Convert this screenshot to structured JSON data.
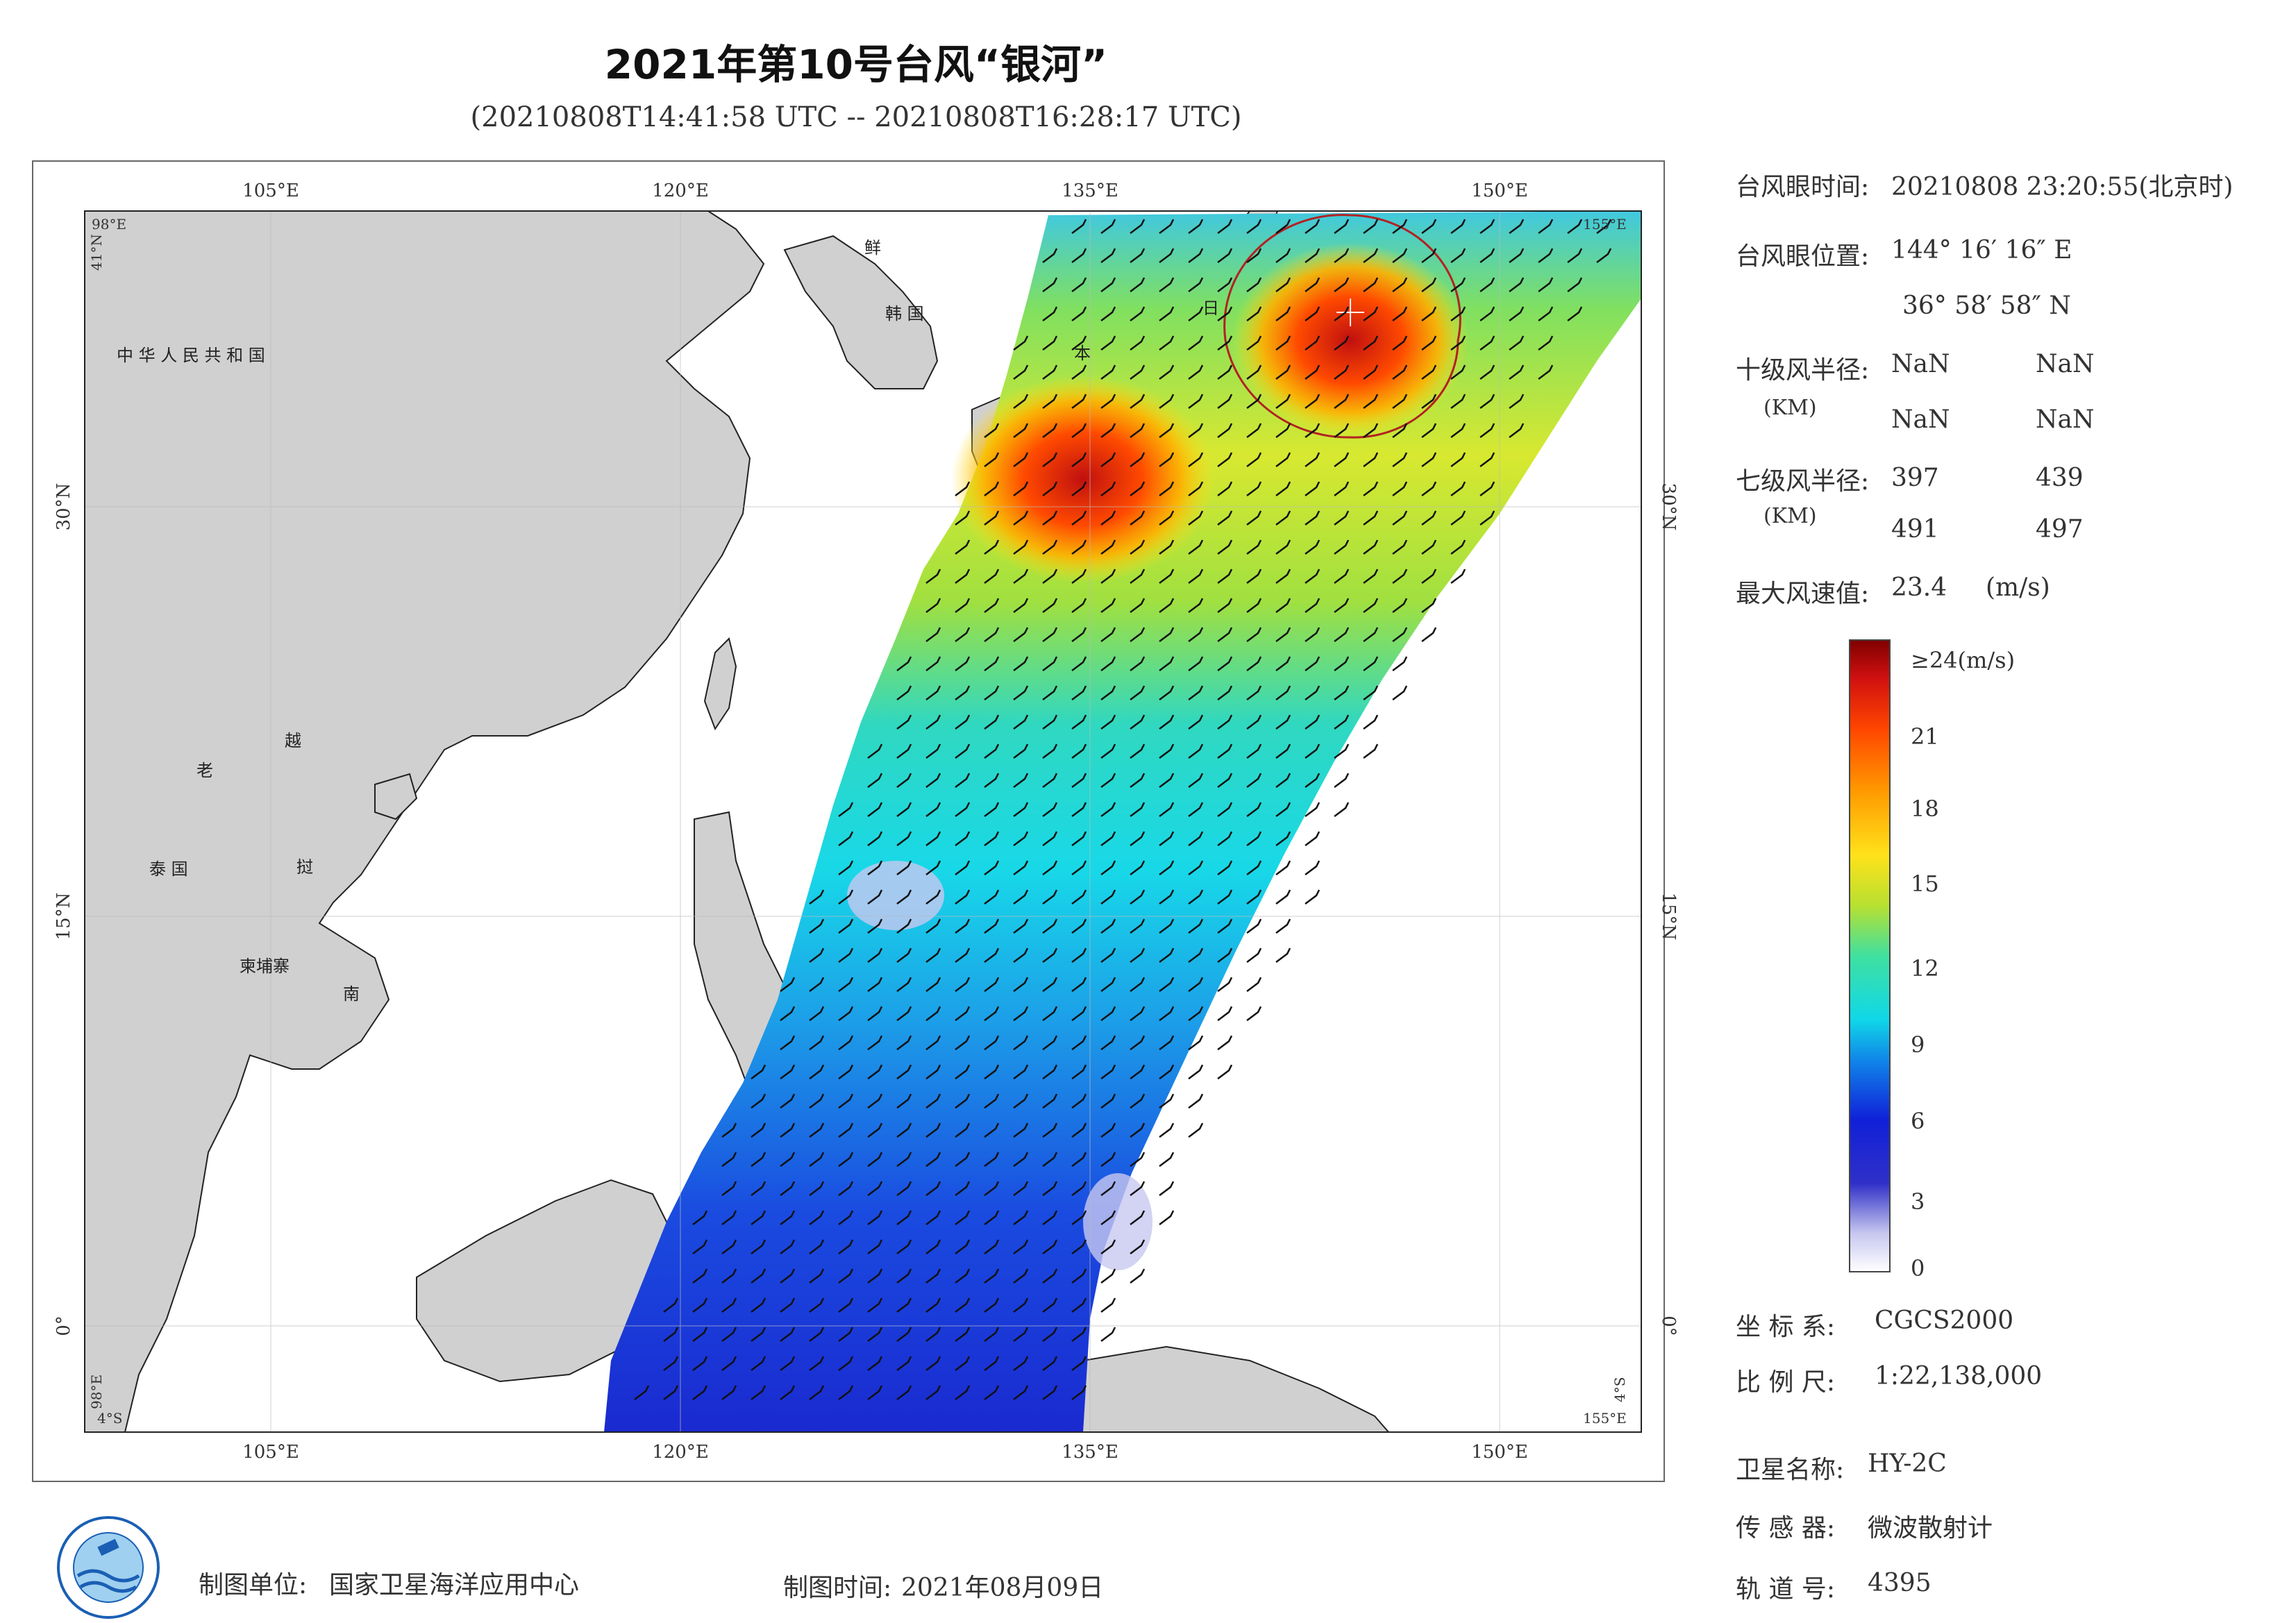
{
  "title": "2021年第10号台风“银河”",
  "subtitle": "(20210808T14:41:58 UTC -- 20210808T16:28:17 UTC)",
  "map": {
    "lon_ticks": [
      "105°E",
      "120°E",
      "135°E",
      "150°E"
    ],
    "lat_ticks": [
      "30°N",
      "15°N",
      "0°"
    ],
    "corner_labels": {
      "tl_lon": "98°E",
      "tl_lat": "41°N",
      "tr_lon": "155°E",
      "bl_lon": "98°E",
      "bl_lat": "4°S",
      "br_lat": "4°S",
      "br_lon": "155°E"
    },
    "place_names": [
      "中 华 人 民 共 和 国",
      "鲜",
      "韩 国",
      "日",
      "本",
      "老",
      "越",
      "泰 国",
      "挝",
      "柬埔寨",
      "南"
    ],
    "colors": {
      "land": "#d0d0d0",
      "ocean": "#ffffff",
      "coast": "#222222",
      "circle": "#b22222"
    }
  },
  "info": {
    "eye_time_label": "台风眼时间:",
    "eye_time_value": "20210808 23:20:55(北京时)",
    "eye_pos_label": "台风眼位置:",
    "eye_pos_lon": "144° 16′ 16″ E",
    "eye_pos_lat": "36° 58′ 58″ N",
    "r10_label": "十级风半径:",
    "r10_unit": "(KM)",
    "r10_values": [
      "NaN",
      "NaN",
      "NaN",
      "NaN"
    ],
    "r7_label": "七级风半径:",
    "r7_unit": "(KM)",
    "r7_values": [
      "397",
      "439",
      "491",
      "497"
    ],
    "max_wind_label": "最大风速值:",
    "max_wind_value": "23.4",
    "max_wind_unit": "(m/s)"
  },
  "colorbar": {
    "labels": [
      "≥24(m/s)",
      "21",
      "18",
      "15",
      "12",
      "9",
      "6",
      "3",
      "0"
    ],
    "colors": [
      "#7f0000",
      "#d01010",
      "#ff4500",
      "#ff9a00",
      "#ffe21a",
      "#b8e030",
      "#40e0a0",
      "#10d8e8",
      "#1080e8",
      "#1020d8",
      "#3030c8",
      "#c8c8f0",
      "#ffffff"
    ]
  },
  "meta": {
    "crs_label": "坐 标 系:",
    "crs_value": "CGCS2000",
    "scale_label": "比 例 尺:",
    "scale_value": "1:22,138,000",
    "sat_label": "卫星名称:",
    "sat_value": "HY-2C",
    "sensor_label": "传 感 器:",
    "sensor_value": "微波散射计",
    "orbit_label": "轨 道 号:",
    "orbit_value": "4395"
  },
  "footer": {
    "unit_label": "制图单位:",
    "unit_value": "国家卫星海洋应用中心",
    "time_label": "制图时间:",
    "time_value": "2021年08月09日"
  }
}
